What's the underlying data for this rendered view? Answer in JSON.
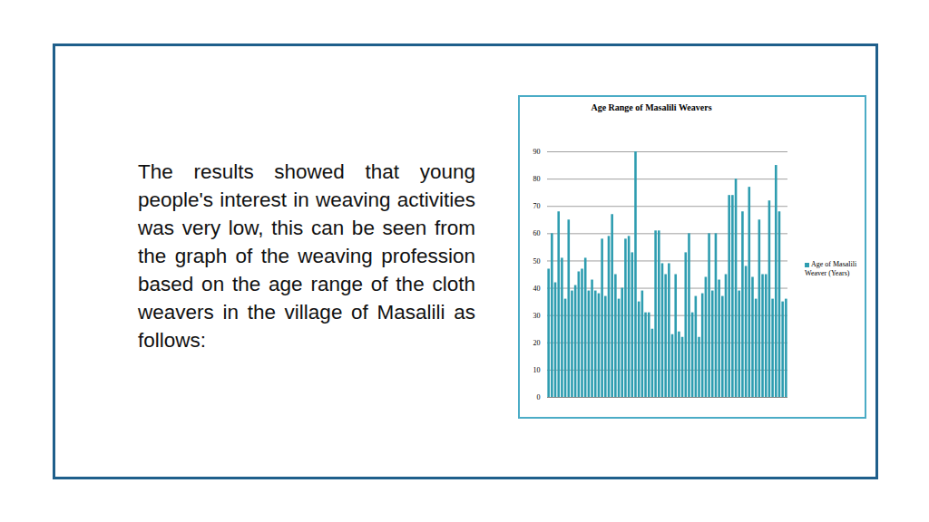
{
  "text": {
    "paragraph": "The results showed that young people's interest in weaving activities was very low, this can be seen from the graph of the weaving profession based on the age range of the cloth weavers in the village of Masalili as follows:"
  },
  "chart_data": {
    "type": "bar",
    "title": "Age Range of Masalili Weavers",
    "categories": [
      null,
      null,
      null,
      null,
      null,
      null,
      null,
      null,
      null,
      null,
      null,
      null,
      null,
      null,
      null,
      null,
      null,
      null,
      null,
      null,
      null,
      null,
      null,
      null,
      null,
      null,
      null,
      null,
      null,
      null,
      null,
      null,
      null,
      null,
      null,
      null,
      null,
      null,
      null,
      null,
      null,
      null,
      null,
      null,
      null,
      null,
      null,
      null,
      null,
      null,
      null,
      null,
      null,
      null,
      null,
      null,
      null,
      null,
      null,
      null,
      null,
      null,
      null,
      null,
      null,
      null,
      null,
      null,
      null,
      null,
      null,
      null
    ],
    "series": [
      {
        "name": "Age of Masalili Weaver (Years)",
        "color": "#2e9db0",
        "values": [
          47,
          60,
          42,
          68,
          51,
          36,
          65,
          39,
          41,
          46,
          47,
          51,
          39,
          43,
          39,
          38,
          58,
          37,
          59,
          67,
          45,
          36,
          40,
          58,
          59,
          53,
          90,
          35,
          39,
          31,
          31,
          25,
          61,
          61,
          49,
          45,
          49,
          23,
          45,
          24,
          22,
          53,
          60,
          31,
          37,
          22,
          38,
          44,
          60,
          39,
          60,
          43,
          37,
          45,
          74,
          74,
          80,
          39,
          68,
          48,
          77,
          44,
          36,
          65,
          45,
          45,
          72,
          36,
          85,
          68,
          35,
          36
        ]
      }
    ],
    "ylim": [
      0,
      90
    ],
    "yticks": [
      0,
      10,
      20,
      30,
      40,
      50,
      60,
      70,
      80,
      90
    ],
    "grid": true,
    "legend": "right",
    "tick_labels": "y"
  }
}
